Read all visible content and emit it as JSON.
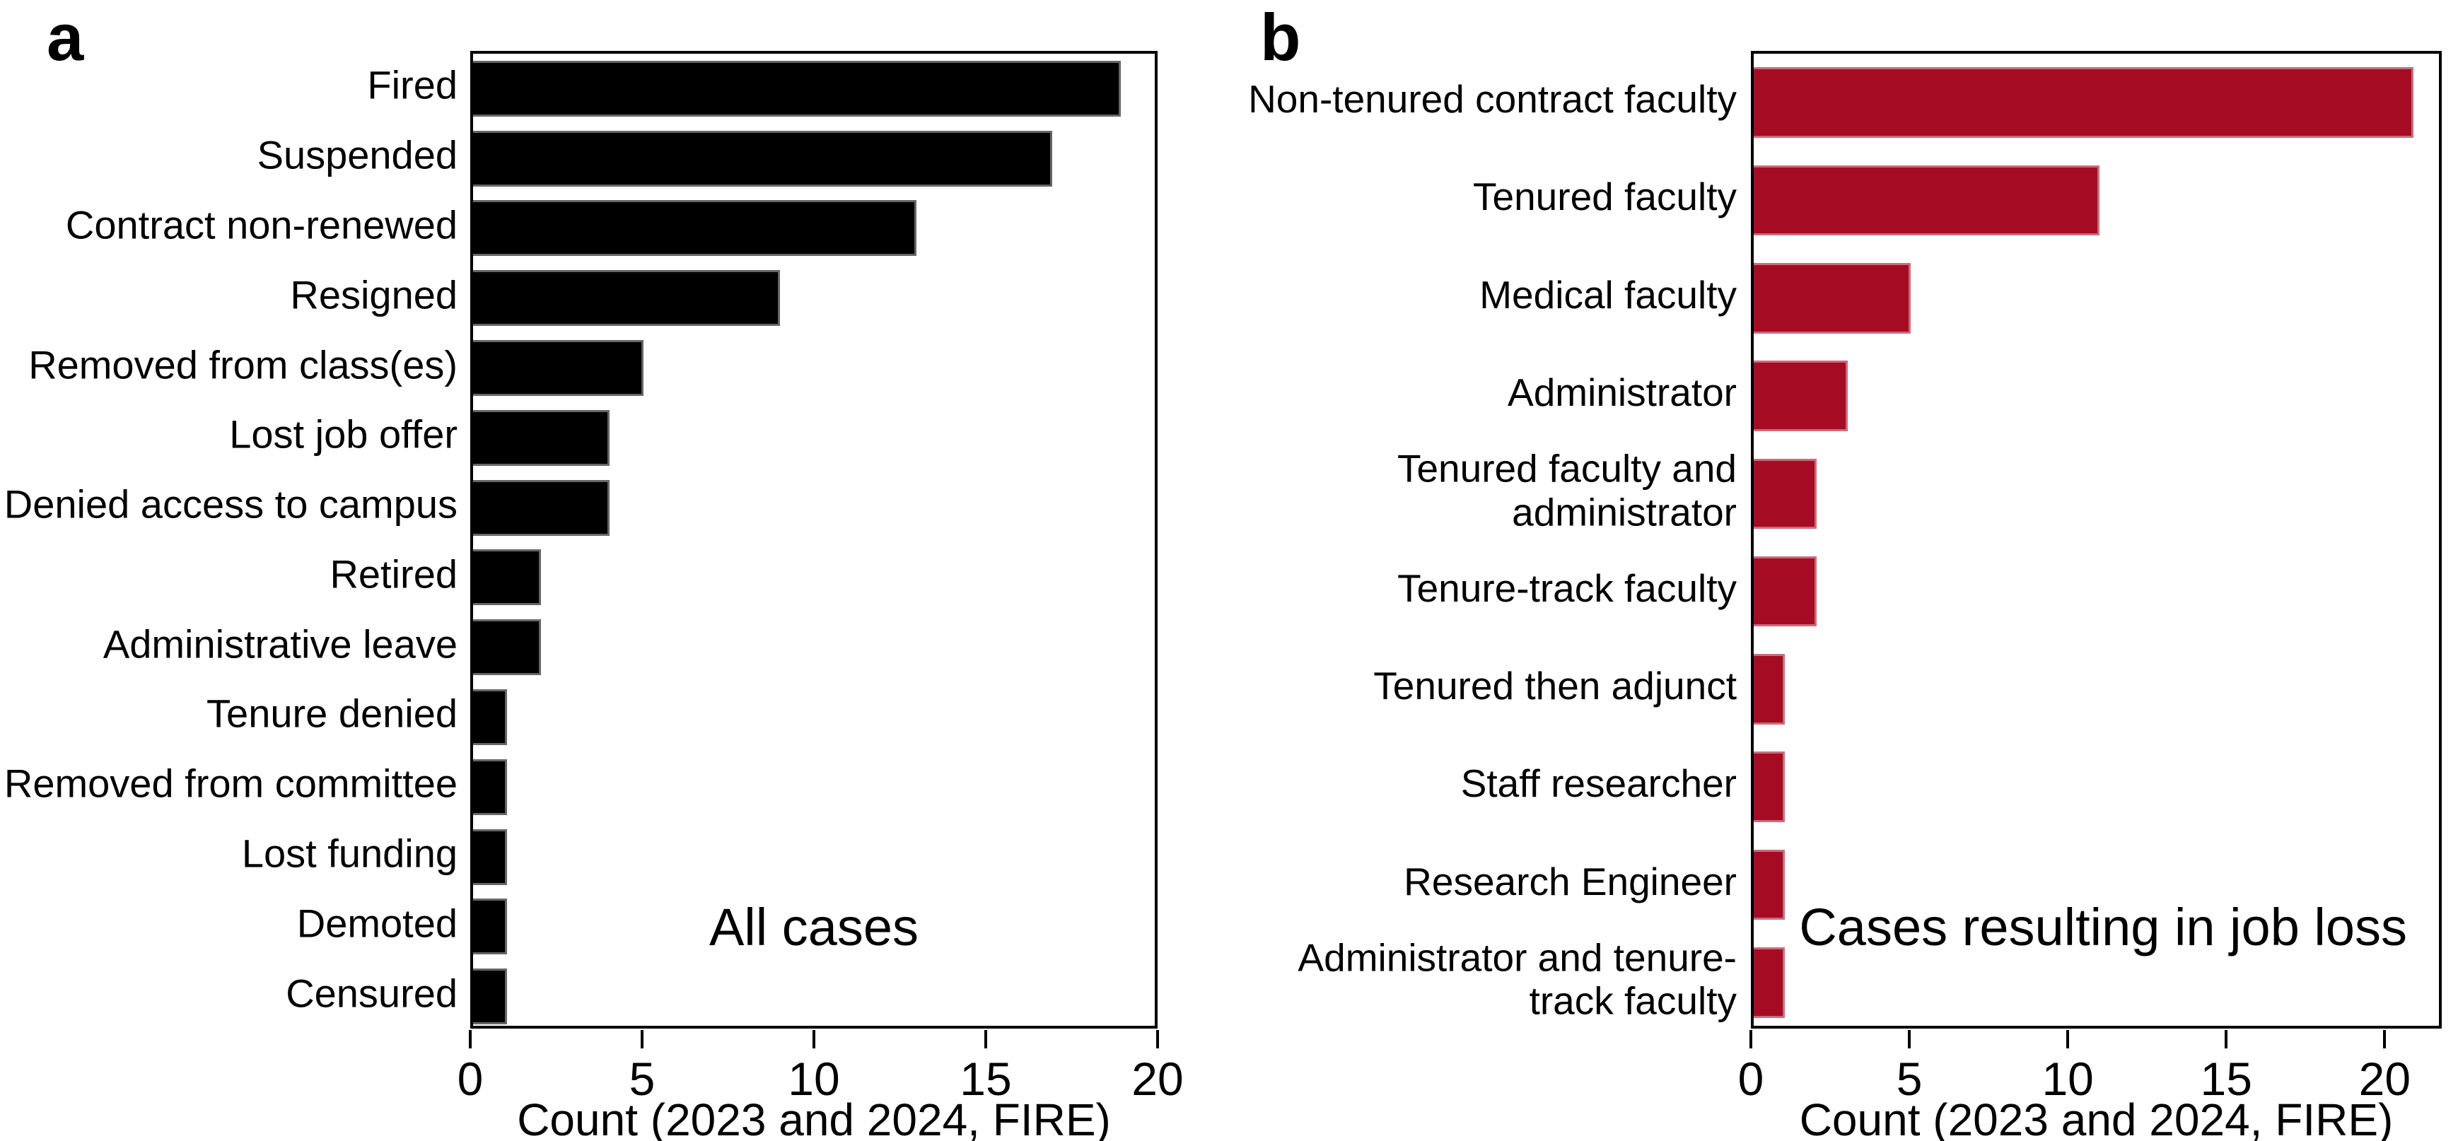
{
  "figure": {
    "background": "#ffffff",
    "text_color": "#000000"
  },
  "chart_data": [
    {
      "type": "bar",
      "orientation": "horizontal",
      "panel_label": "a",
      "title": "",
      "annotation": "All cases",
      "xlabel": "Count (2023 and 2024, FIRE)",
      "ylabel": "",
      "categories": [
        "Fired",
        "Suspended",
        "Contract non-renewed",
        "Resigned",
        "Removed from class(es)",
        "Lost job offer",
        "Denied access to campus",
        "Retired",
        "Administrative leave",
        "Tenure denied",
        "Removed from committee",
        "Lost funding",
        "Demoted",
        "Censured"
      ],
      "values": [
        19,
        17,
        13,
        9,
        5,
        4,
        4,
        2,
        2,
        1,
        1,
        1,
        1,
        1
      ],
      "bar_color": "#000000",
      "xticks": [
        0,
        5,
        10,
        15,
        20
      ],
      "xlim": [
        0,
        20
      ],
      "grid": false,
      "legend": "none"
    },
    {
      "type": "bar",
      "orientation": "horizontal",
      "panel_label": "b",
      "title": "",
      "annotation": "Cases resulting in job loss",
      "xlabel": "Count (2023 and 2024, FIRE)",
      "ylabel": "",
      "categories": [
        "Non-tenured contract faculty",
        "Tenured faculty",
        "Medical faculty",
        "Administrator",
        "Tenured faculty and\nadministrator",
        "Tenure-track faculty",
        "Tenured then adjunct",
        "Staff researcher",
        "Research Engineer",
        "Administrator and tenure-\ntrack faculty"
      ],
      "values": [
        21,
        11,
        5,
        3,
        2,
        2,
        1,
        1,
        1,
        1
      ],
      "bar_color": "#A50B23",
      "xticks": [
        0,
        5,
        10,
        15,
        20
      ],
      "xlim": [
        0,
        21.8
      ],
      "grid": false,
      "legend": "none"
    }
  ]
}
